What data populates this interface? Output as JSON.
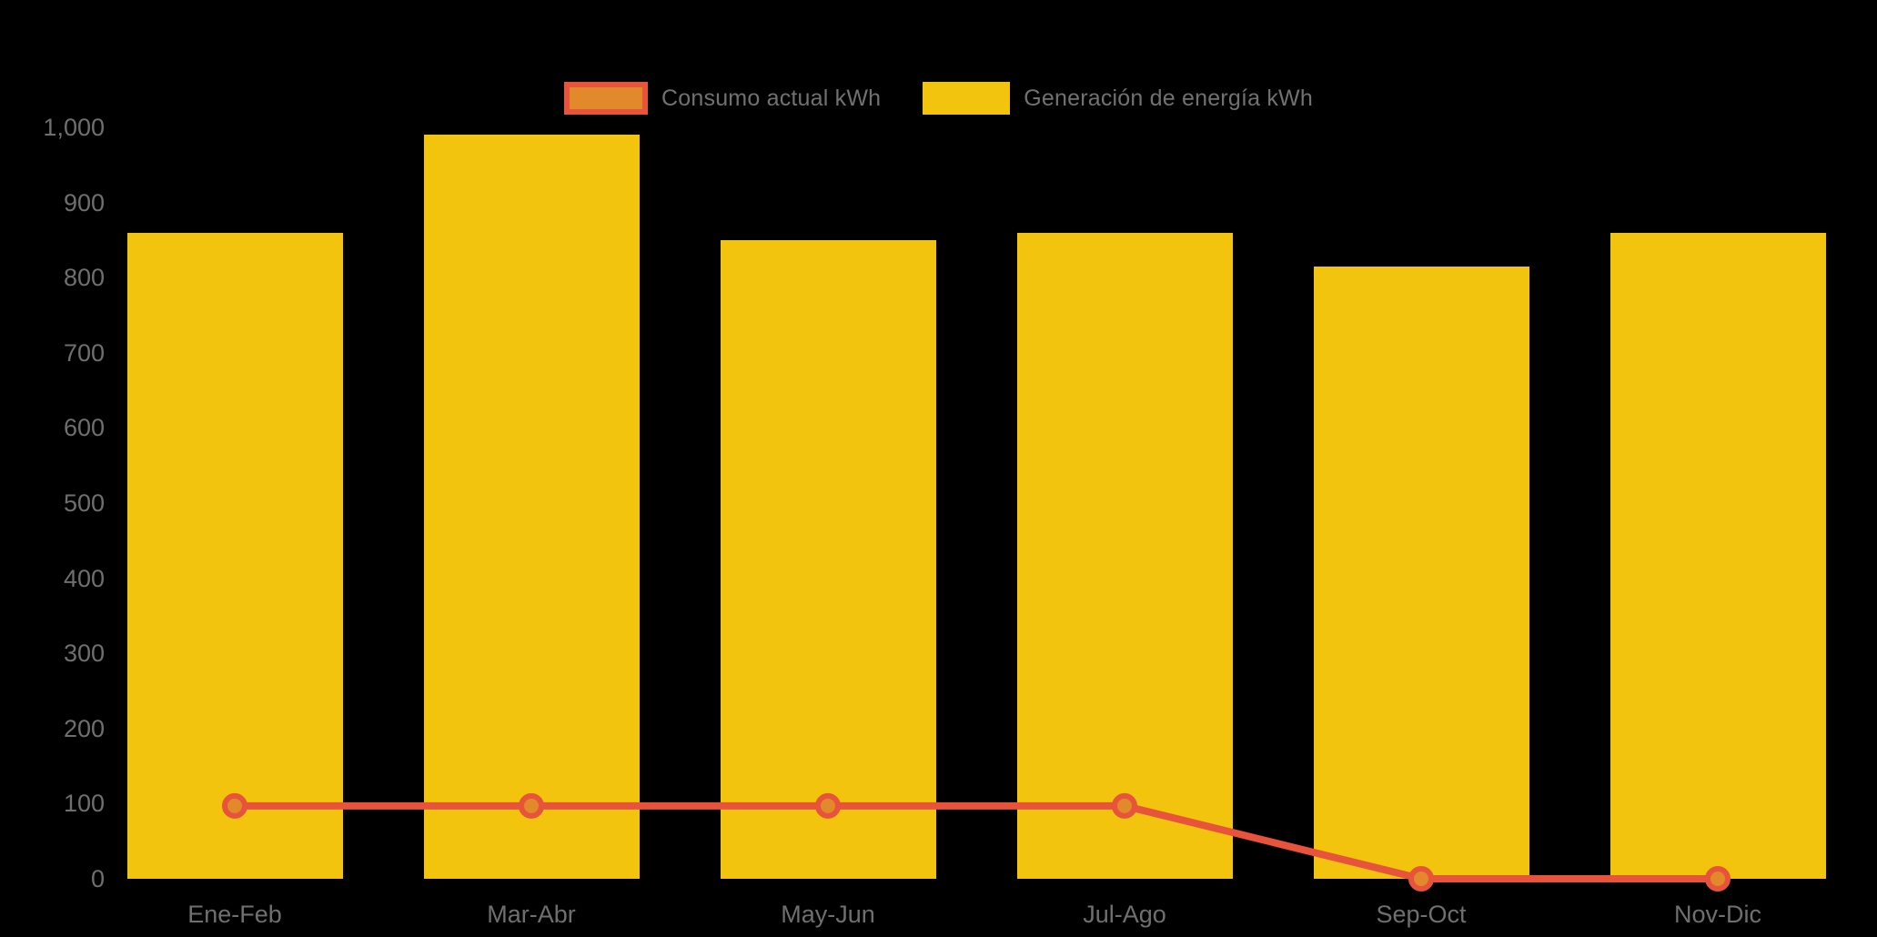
{
  "app": {
    "background_color": "#000000",
    "text_color": "#6F6F6F"
  },
  "legend": {
    "position": "top-center",
    "items": [
      {
        "label": "Consumo actual kWh",
        "swatch": "line-series-swatch",
        "fill": "#E2892B",
        "border": "#E8533B"
      },
      {
        "label": "Generación de energía kWh",
        "swatch": "bar-series-swatch",
        "fill": "#F2C40E"
      }
    ]
  },
  "chart_data": {
    "type": "bar",
    "subtype": "bar-with-line-overlay",
    "title": "",
    "xlabel": "",
    "ylabel": "",
    "categories": [
      "Ene-Feb",
      "Mar-Abr",
      "May-Jun",
      "Jul-Ago",
      "Sep-Oct",
      "Nov-Dic"
    ],
    "series": [
      {
        "name": "Generación de energía kWh",
        "type": "bar",
        "color": "#F2C40E",
        "values": [
          860,
          990,
          850,
          860,
          815,
          860
        ]
      },
      {
        "name": "Consumo actual kWh",
        "type": "line",
        "color": "#E8533B",
        "marker_fill": "#E2892B",
        "values": [
          97,
          97,
          97,
          97,
          0,
          0
        ]
      }
    ],
    "ylim": [
      0,
      1000
    ],
    "y_ticks": [
      {
        "label": "1,000",
        "value": 1000
      },
      {
        "label": "900",
        "value": 900
      },
      {
        "label": "800",
        "value": 800
      },
      {
        "label": "700",
        "value": 700
      },
      {
        "label": "600",
        "value": 600
      },
      {
        "label": "500",
        "value": 500
      },
      {
        "label": "400",
        "value": 400
      },
      {
        "label": "300",
        "value": 300
      },
      {
        "label": "200",
        "value": 200
      },
      {
        "label": "100",
        "value": 100
      },
      {
        "label": "0",
        "value": 0
      }
    ],
    "grid": false,
    "legend_position": "top-center",
    "background": "#000000"
  }
}
